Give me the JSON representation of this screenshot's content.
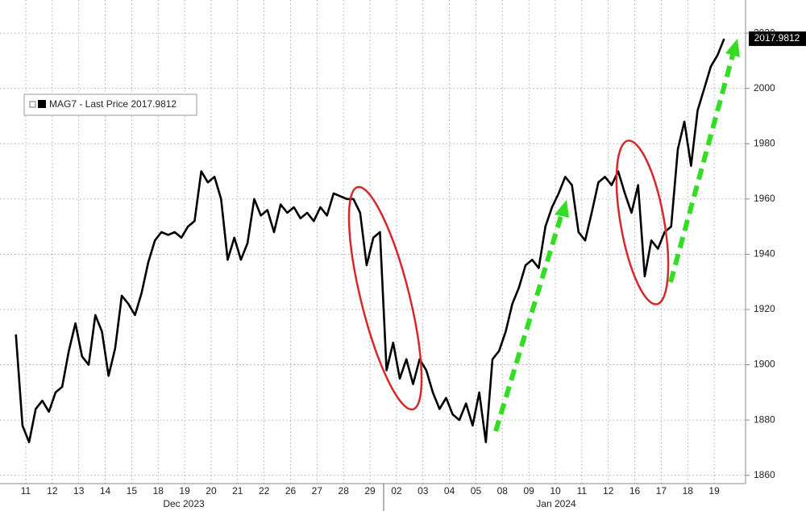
{
  "chart_data": {
    "type": "line",
    "categories": [
      "11",
      "12",
      "13",
      "14",
      "15",
      "18",
      "19",
      "20",
      "21",
      "22",
      "26",
      "27",
      "28",
      "29",
      "02",
      "03",
      "04",
      "05",
      "08",
      "09",
      "10",
      "11",
      "12",
      "16",
      "17",
      "18",
      "19"
    ],
    "groups": [
      "Dec 2023",
      "Jan 2024"
    ],
    "series": [
      {
        "name": "MAG7 - Last Price",
        "color": "#000000",
        "values": [
          [
            1911,
            1878,
            1872,
            1884
          ],
          [
            1887,
            1883,
            1890,
            1892
          ],
          [
            1905,
            1915,
            1903,
            1900
          ],
          [
            1918,
            1912,
            1896,
            1906
          ],
          [
            1925,
            1922,
            1918,
            1926
          ],
          [
            1937,
            1945,
            1948,
            1947
          ],
          [
            1948,
            1946,
            1950,
            1952
          ],
          [
            1970,
            1966,
            1968,
            1960
          ],
          [
            1938,
            1946,
            1938,
            1944
          ],
          [
            1960,
            1954,
            1956,
            1948
          ],
          [
            1958,
            1955,
            1957,
            1953
          ],
          [
            1955,
            1952,
            1957,
            1954
          ],
          [
            1962,
            1961,
            1960,
            1960
          ],
          [
            1955,
            1936,
            1946,
            1948
          ],
          [
            1898,
            1908,
            1895,
            1902
          ],
          [
            1893,
            1902,
            1898,
            1890
          ],
          [
            1884,
            1888,
            1882,
            1880
          ],
          [
            1886,
            1878,
            1890,
            1872
          ],
          [
            1902,
            1905,
            1912,
            1922
          ],
          [
            1928,
            1936,
            1938,
            1935
          ],
          [
            1950,
            1957,
            1962,
            1968
          ],
          [
            1965,
            1948,
            1945,
            1955
          ],
          [
            1966,
            1968,
            1965,
            1970
          ],
          [
            1962,
            1955,
            1965,
            1932
          ],
          [
            1945,
            1942,
            1948,
            1950
          ],
          [
            1978,
            1988,
            1972,
            1992
          ],
          [
            2000,
            2008,
            2012,
            2017.9812
          ]
        ]
      }
    ],
    "ylim": [
      1857,
      2032
    ],
    "yticks": [
      1860,
      1880,
      1900,
      1920,
      1940,
      1960,
      1980,
      2000,
      2020
    ],
    "grid": true
  }
}
